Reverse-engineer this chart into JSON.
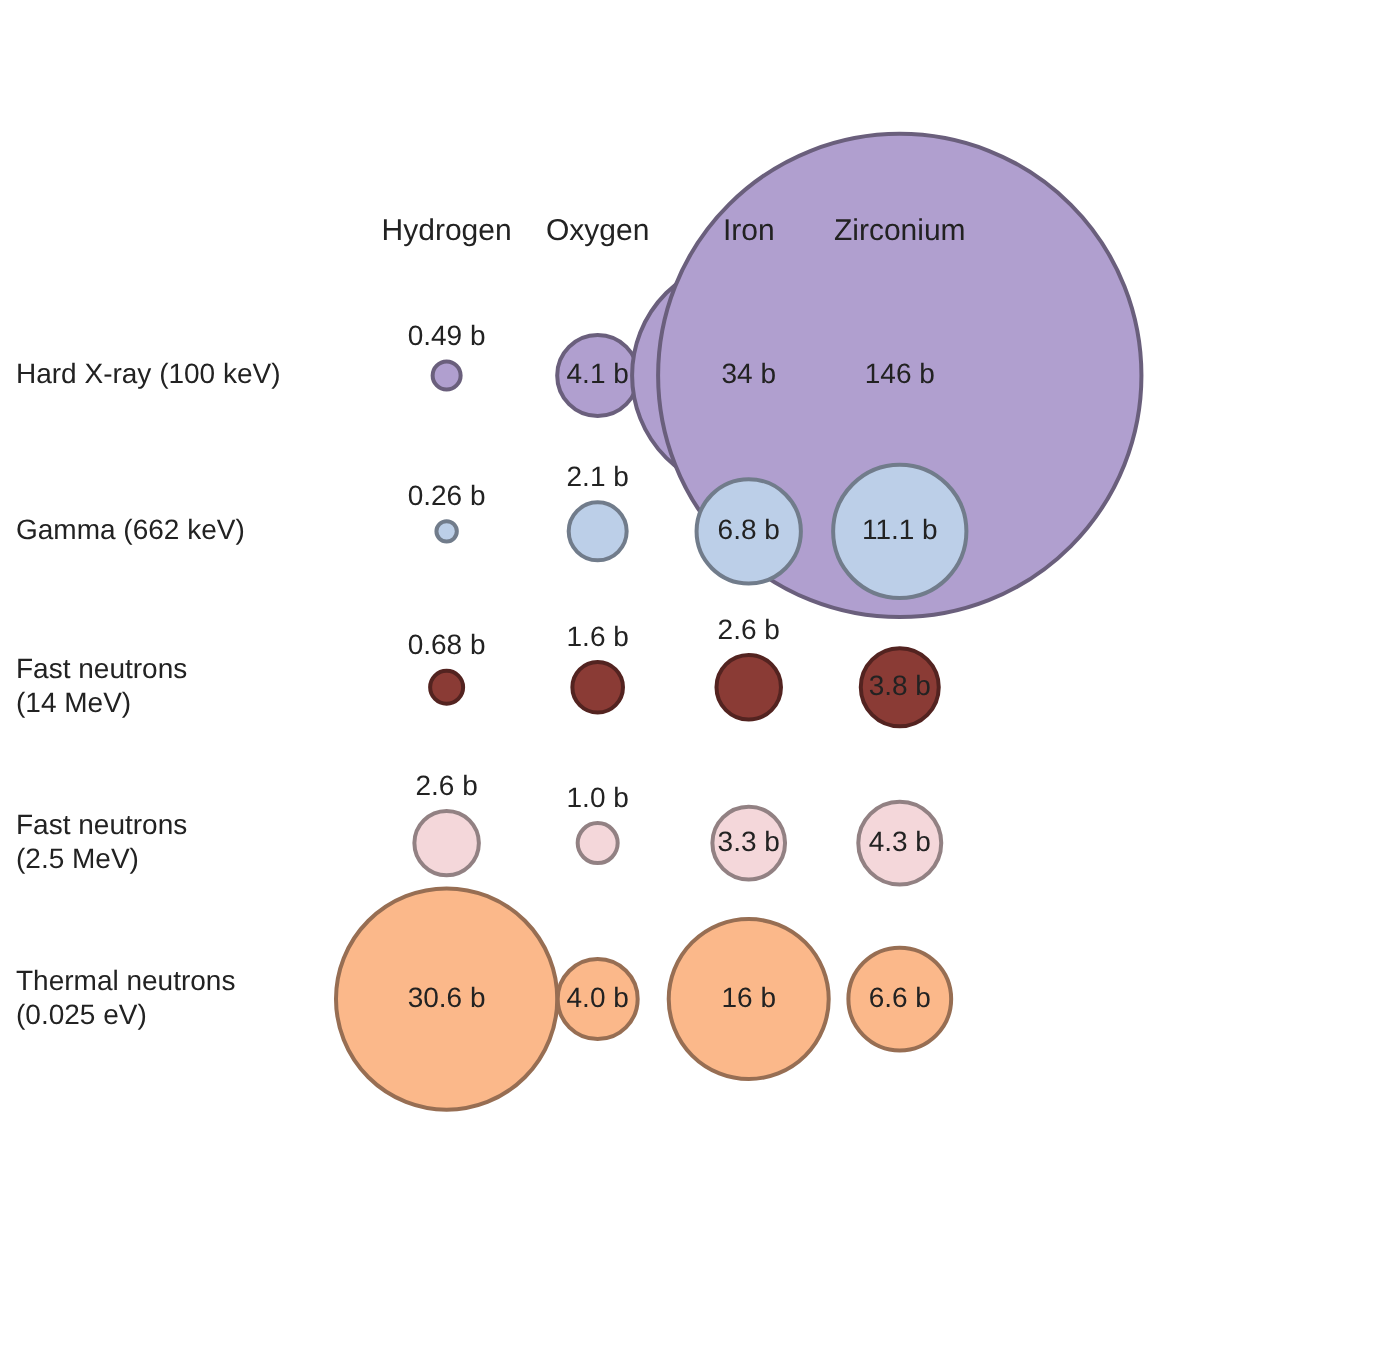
{
  "chart_data": {
    "type": "other",
    "categories": [
      "Hydrogen",
      "Oxygen",
      "Iron",
      "Zirconium"
    ],
    "y_categories": [
      "Hard X-ray (100 keV)",
      "Gamma (662 keV)",
      "Fast neutrons (14 MeV)",
      "Fast neutrons (2.5 MeV)",
      "Thermal neutrons (0.025 eV)"
    ],
    "series": [
      {
        "color": "#b09fcf",
        "values": [
          0.49,
          4.1,
          34,
          146
        ],
        "value_labels": [
          "0.49 b",
          "4.1 b",
          "34 b",
          "146 b"
        ]
      },
      {
        "color": "#bccfe8",
        "values": [
          0.26,
          2.1,
          6.8,
          11.1
        ],
        "value_labels": [
          "0.26 b",
          "2.1 b",
          "6.8 b",
          "11.1 b"
        ]
      },
      {
        "color": "#8a3b35",
        "values": [
          0.68,
          1.6,
          2.6,
          3.8
        ],
        "value_labels": [
          "0.68 b",
          "1.6 b",
          "2.6 b",
          "3.8 b"
        ]
      },
      {
        "color": "#f4d7da",
        "values": [
          2.6,
          1.0,
          3.3,
          4.3
        ],
        "value_labels": [
          "2.6 b",
          "1.0 b",
          "3.3 b",
          "4.3 b"
        ]
      },
      {
        "color": "#fbb88a",
        "values": [
          30.6,
          4.0,
          16,
          6.6
        ],
        "value_labels": [
          "30.6 b",
          "4.0 b",
          "16 b",
          "6.6 b"
        ]
      }
    ],
    "legend": false
  }
}
